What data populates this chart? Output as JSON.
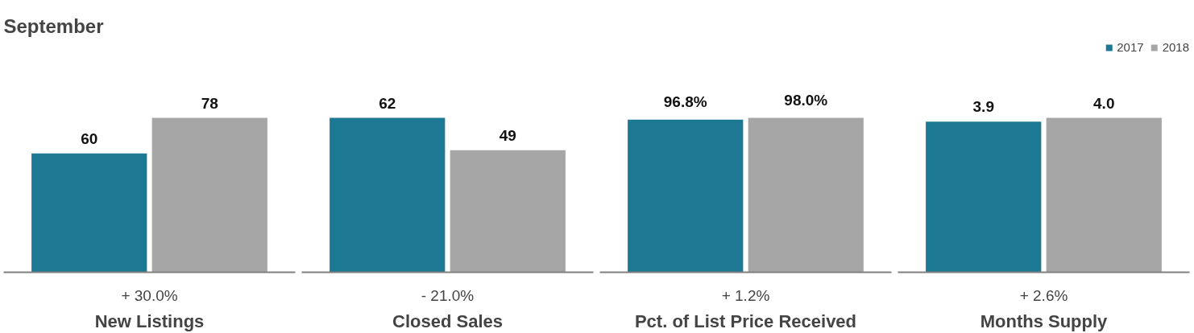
{
  "chart_data": [
    {
      "type": "bar",
      "title": "September",
      "xlabel": "New Listings",
      "annotations": [
        "+ 30.0%"
      ],
      "series": [
        {
          "color": "#1c7893",
          "values": [
            60
          ],
          "value_labels": [
            "60"
          ]
        },
        {
          "color": "#a6a6a6",
          "values": [
            78
          ],
          "value_labels": [
            "78"
          ]
        }
      ]
    },
    {
      "type": "bar",
      "xlabel": "Closed Sales",
      "annotations": [
        "- 21.0%"
      ],
      "series": [
        {
          "color": "#1c7893",
          "values": [
            62
          ],
          "value_labels": [
            "62"
          ]
        },
        {
          "color": "#a6a6a6",
          "values": [
            49
          ],
          "value_labels": [
            "49"
          ]
        }
      ]
    },
    {
      "type": "bar",
      "xlabel": "Pct. of List Price Received",
      "annotations": [
        "+ 1.2%"
      ],
      "series": [
        {
          "color": "#1c7893",
          "values": [
            96.8
          ],
          "value_labels": [
            "96.8%"
          ]
        },
        {
          "color": "#a6a6a6",
          "values": [
            98.0
          ],
          "value_labels": [
            "98.0%"
          ]
        }
      ]
    },
    {
      "type": "bar",
      "xlabel": "Months Supply",
      "annotations": [
        "+ 2.6%"
      ],
      "legend": "top right",
      "series": [
        {
          "name": "2017",
          "color": "#1c7893",
          "values": [
            3.9
          ],
          "value_labels": [
            "3.9"
          ]
        },
        {
          "name": "2018",
          "color": "#a6a6a6",
          "values": [
            4.0
          ],
          "value_labels": [
            "4.0"
          ]
        }
      ]
    }
  ]
}
